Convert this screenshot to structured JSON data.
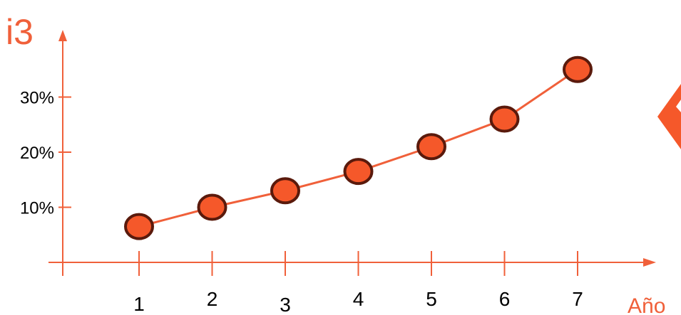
{
  "chart_data": {
    "type": "line",
    "ylabel": "i3",
    "xlabel": "Año",
    "x": [
      1,
      2,
      3,
      4,
      5,
      6,
      7
    ],
    "x_tick_labels": [
      "1",
      "2",
      "3",
      "4",
      "5",
      "6",
      "7"
    ],
    "y_ticks": [
      10,
      20,
      30
    ],
    "y_tick_labels": [
      "10%",
      "20%",
      "30%"
    ],
    "series": [
      {
        "values": [
          6.5,
          10,
          13,
          16.5,
          21,
          26,
          35
        ]
      }
    ],
    "grid": false,
    "legend": "none"
  },
  "colors": {
    "axis": "#f0603a",
    "line": "#f0603a",
    "marker_fill": "#f5582a",
    "marker_stroke": "#5a1a0c",
    "tick_text": "#000000",
    "accent_shape": "#f5582a"
  }
}
